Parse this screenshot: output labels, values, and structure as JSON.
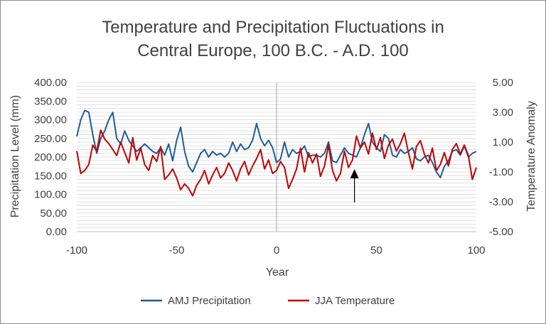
{
  "chart_data": {
    "type": "line",
    "title_lines": [
      "Temperature and Precipitation Fluctuations in",
      "Central Europe, 100 B.C. - A.D. 100"
    ],
    "xlabel": "Year",
    "ylabel_left": "Precipitation Level (mm)",
    "ylabel_right": "Temperature Anomaly",
    "xlim": [
      -100,
      100
    ],
    "x_ticks": [
      "-100",
      "-50",
      "0",
      "50",
      "100"
    ],
    "ylim_left": [
      0,
      400
    ],
    "y_ticks_left": [
      "0.00",
      "50.00",
      "100.00",
      "150.00",
      "200.00",
      "250.00",
      "300.00",
      "350.00",
      "400.00"
    ],
    "ylim_right": [
      -5,
      5
    ],
    "y_ticks_right": [
      "-5.00",
      "-3.00",
      "-1.00",
      "1.00",
      "3.00",
      "5.00"
    ],
    "grid": true,
    "legend_position": "bottom",
    "x": [
      -100,
      -98,
      -96,
      -94,
      -92,
      -90,
      -88,
      -86,
      -84,
      -82,
      -80,
      -78,
      -76,
      -74,
      -72,
      -70,
      -68,
      -66,
      -64,
      -62,
      -60,
      -58,
      -56,
      -54,
      -52,
      -50,
      -48,
      -46,
      -44,
      -42,
      -40,
      -38,
      -36,
      -34,
      -32,
      -30,
      -28,
      -26,
      -24,
      -22,
      -20,
      -18,
      -16,
      -14,
      -12,
      -10,
      -8,
      -6,
      -4,
      -2,
      0,
      2,
      4,
      6,
      8,
      10,
      12,
      14,
      16,
      18,
      20,
      22,
      24,
      26,
      28,
      30,
      32,
      34,
      36,
      38,
      40,
      42,
      44,
      46,
      48,
      50,
      52,
      54,
      56,
      58,
      60,
      62,
      64,
      66,
      68,
      70,
      72,
      74,
      76,
      78,
      80,
      82,
      84,
      86,
      88,
      90,
      92,
      94,
      96,
      98,
      100
    ],
    "series": [
      {
        "name": "AMJ Precipitation",
        "axis": "left",
        "color": "#1f5c99",
        "values": [
          255,
          300,
          325,
          320,
          260,
          210,
          250,
          270,
          300,
          320,
          250,
          235,
          270,
          245,
          230,
          215,
          225,
          235,
          225,
          215,
          210,
          225,
          205,
          235,
          190,
          245,
          280,
          215,
          175,
          160,
          185,
          210,
          220,
          200,
          215,
          205,
          210,
          200,
          210,
          240,
          215,
          235,
          220,
          225,
          245,
          290,
          250,
          230,
          245,
          225,
          185,
          195,
          240,
          200,
          220,
          210,
          215,
          230,
          200,
          205,
          205,
          200,
          210,
          240,
          190,
          185,
          205,
          225,
          210,
          205,
          200,
          225,
          260,
          290,
          240,
          225,
          215,
          260,
          250,
          205,
          200,
          220,
          210,
          215,
          225,
          195,
          190,
          200,
          205,
          185,
          160,
          145,
          175,
          190,
          215,
          220,
          205,
          230,
          200,
          210,
          215
        ]
      },
      {
        "name": "JJA Temperature",
        "axis": "right",
        "color": "#c00000",
        "values": [
          0.4,
          -1.1,
          -0.9,
          -0.5,
          0.8,
          0.4,
          1.8,
          1.2,
          0.9,
          0.5,
          0.1,
          1.0,
          0.3,
          -0.4,
          1.3,
          -0.2,
          0.6,
          -0.5,
          -0.9,
          0.1,
          -0.3,
          0.7,
          -1.5,
          -1.2,
          -0.8,
          -1.4,
          -2.2,
          -1.8,
          -2.1,
          -2.6,
          -1.9,
          -1.5,
          -0.9,
          -1.8,
          -1.2,
          -0.7,
          -1.4,
          -1.1,
          -0.4,
          -0.9,
          -1.6,
          -0.8,
          -0.3,
          -1.2,
          -0.6,
          -0.1,
          0.5,
          -0.8,
          -0.2,
          -1.1,
          -0.9,
          -0.3,
          -0.7,
          -2.1,
          -1.5,
          -0.8,
          0.6,
          -1.0,
          0.3,
          -0.4,
          0.2,
          -1.3,
          -0.6,
          0.8,
          -0.9,
          -1.6,
          -1.1,
          0.4,
          -0.7,
          -0.2,
          1.4,
          0.6,
          1.0,
          0.2,
          1.6,
          0.5,
          1.3,
          -0.1,
          0.8,
          1.2,
          0.4,
          0.9,
          1.6,
          0.3,
          -0.8,
          0.7,
          1.1,
          0.2,
          -0.4,
          0.6,
          -0.9,
          -0.5,
          0.3,
          -0.6,
          0.5,
          0.9,
          0.2,
          0.8,
          0.1,
          -1.5,
          -0.7
        ]
      }
    ],
    "legend": [
      "AMJ Precipitation",
      "JJA Temperature"
    ],
    "annotation_arrow_x": 39
  }
}
